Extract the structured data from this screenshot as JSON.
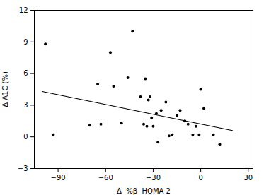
{
  "chart_data": {
    "type": "scatter",
    "xlabel": "Δ  %β  HOMA 2",
    "ylabel": "Δ A1C (%)",
    "xlim": [
      -105,
      33
    ],
    "ylim": [
      -3,
      12
    ],
    "xticks": [
      -90,
      -60,
      -30,
      0,
      30
    ],
    "yticks": [
      -3,
      0,
      3,
      6,
      9,
      12
    ],
    "series": [
      {
        "type": "scatter",
        "color": "#000000",
        "x": [
          -98,
          -93,
          -70,
          -65,
          -63,
          -57,
          -55,
          -50,
          -46,
          -43,
          -38,
          -36,
          -35,
          -34,
          -33,
          -32,
          -31,
          -30,
          -28,
          -27,
          -25,
          -22,
          -20,
          -18,
          -15,
          -13,
          -10,
          -8,
          -5,
          -3,
          -1,
          0,
          2,
          8,
          12
        ],
        "values": [
          8.8,
          0.2,
          1.1,
          5.0,
          1.2,
          8.0,
          4.8,
          1.3,
          5.6,
          10.0,
          3.8,
          1.2,
          5.5,
          1.0,
          3.5,
          3.8,
          1.8,
          1.0,
          2.2,
          -0.5,
          2.5,
          3.3,
          0.1,
          0.2,
          2.0,
          2.5,
          1.5,
          1.2,
          0.2,
          1.0,
          0.2,
          4.5,
          2.7,
          0.2,
          -0.7
        ]
      },
      {
        "type": "line",
        "color": "#000000",
        "x": [
          -100,
          20
        ],
        "values": [
          4.3,
          0.6
        ]
      }
    ]
  }
}
